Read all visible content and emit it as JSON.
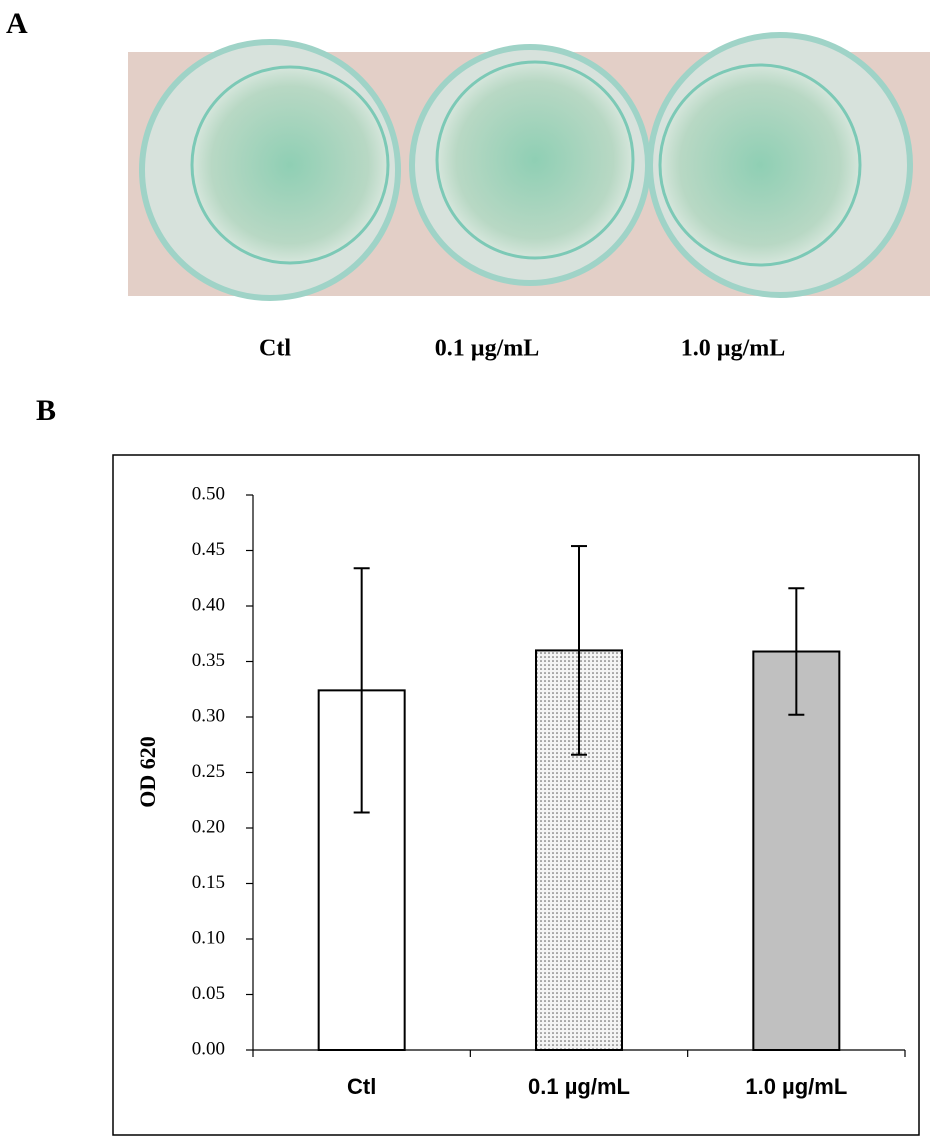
{
  "panel_a": {
    "label": "A",
    "photo_labels": [
      "Ctl",
      "0.1 µg/mL",
      "1.0 µg/mL"
    ]
  },
  "panel_b": {
    "label": "B"
  },
  "chart_data": {
    "type": "bar",
    "y_label": "OD 620",
    "categories": [
      "Ctl",
      "0.1 µg/mL",
      "1.0 µg/mL"
    ],
    "values": [
      0.324,
      0.36,
      0.359
    ],
    "errors": [
      0.11,
      0.094,
      0.057
    ],
    "colors": [
      "#ffffff",
      "#e4e4e4",
      "#c0c0c0"
    ],
    "patterns": [
      "solid",
      "dots",
      "solid"
    ],
    "ylim": [
      0,
      0.5
    ],
    "yticks": [
      {
        "value": 0,
        "label": "0.00"
      },
      {
        "value": 0.05,
        "label": "0.05"
      },
      {
        "value": 0.1,
        "label": "0.10"
      },
      {
        "value": 0.15,
        "label": "0.15"
      },
      {
        "value": 0.2,
        "label": "0.20"
      },
      {
        "value": 0.25,
        "label": "0.25"
      },
      {
        "value": 0.3,
        "label": "0.30"
      },
      {
        "value": 0.35,
        "label": "0.35"
      },
      {
        "value": 0.4,
        "label": "0.40"
      },
      {
        "value": 0.45,
        "label": "0.45"
      },
      {
        "value": 0.5,
        "label": "0.50"
      }
    ]
  }
}
